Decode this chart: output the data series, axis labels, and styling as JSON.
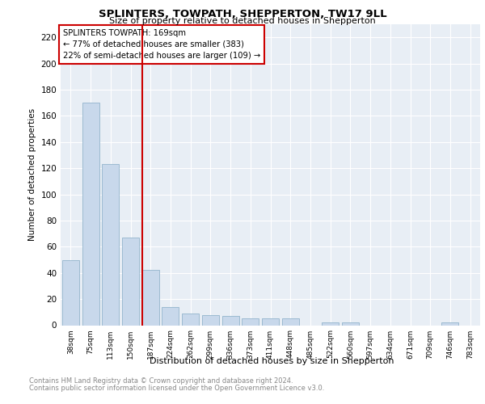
{
  "title": "SPLINTERS, TOWPATH, SHEPPERTON, TW17 9LL",
  "subtitle": "Size of property relative to detached houses in Shepperton",
  "xlabel": "Distribution of detached houses by size in Shepperton",
  "ylabel": "Number of detached properties",
  "categories": [
    "38sqm",
    "75sqm",
    "113sqm",
    "150sqm",
    "187sqm",
    "224sqm",
    "262sqm",
    "299sqm",
    "336sqm",
    "373sqm",
    "411sqm",
    "448sqm",
    "485sqm",
    "522sqm",
    "560sqm",
    "597sqm",
    "634sqm",
    "671sqm",
    "709sqm",
    "746sqm",
    "783sqm"
  ],
  "values": [
    50,
    170,
    123,
    67,
    42,
    14,
    9,
    8,
    7,
    5,
    5,
    5,
    0,
    2,
    2,
    0,
    0,
    0,
    0,
    2,
    0
  ],
  "bar_color": "#c8d8eb",
  "bar_edge_color": "#92b4cc",
  "marker_label": "SPLINTERS TOWPATH: 169sqm",
  "annotation_line1": "← 77% of detached houses are smaller (383)",
  "annotation_line2": "22% of semi-detached houses are larger (109) →",
  "vline_color": "#cc0000",
  "footer_line1": "Contains HM Land Registry data © Crown copyright and database right 2024.",
  "footer_line2": "Contains public sector information licensed under the Open Government Licence v3.0.",
  "ylim": [
    0,
    230
  ],
  "yticks": [
    0,
    20,
    40,
    60,
    80,
    100,
    120,
    140,
    160,
    180,
    200,
    220
  ],
  "bg_color": "#e8eef5",
  "vline_x": 3.58
}
